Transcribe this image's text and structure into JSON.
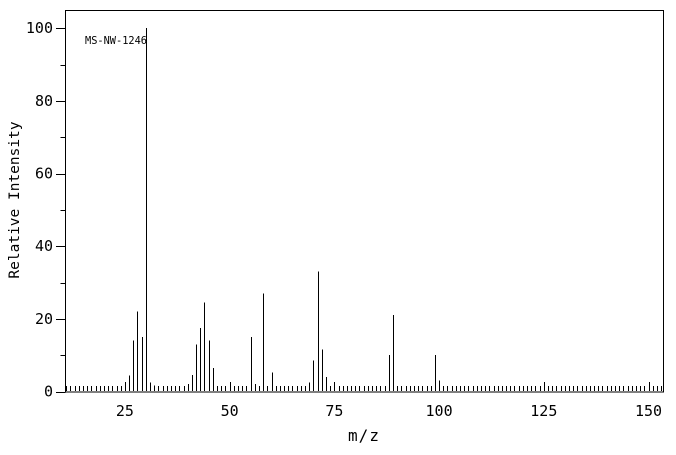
{
  "figure": {
    "background_color": "#ffffff",
    "line_color": "#000000",
    "annotation_label": "MS-NW-1246"
  },
  "chart_data": {
    "type": "bar",
    "subtype": "mass-spectrum",
    "annotation": "MS-NW-1246",
    "xlabel": "m/z",
    "ylabel": "Relative Intensity",
    "xlim": [
      10.7,
      153.45
    ],
    "ylim": [
      0,
      105
    ],
    "x_major_ticks": [
      25,
      50,
      75,
      100,
      125,
      150
    ],
    "x_minor_tick_step": 1,
    "y_major_ticks": [
      0,
      20,
      40,
      60,
      80,
      100
    ],
    "y_minor_tick_step": 10,
    "grid": false,
    "legend": false,
    "peaks_format": [
      "mz",
      "relative_intensity_percent"
    ],
    "peaks": [
      [
        26,
        4.4
      ],
      [
        27,
        14
      ],
      [
        28,
        22
      ],
      [
        29,
        15
      ],
      [
        30,
        100
      ],
      [
        31,
        2.5
      ],
      [
        32,
        1.7
      ],
      [
        38,
        1
      ],
      [
        39,
        1.5
      ],
      [
        40,
        2
      ],
      [
        41,
        4.5
      ],
      [
        42,
        13
      ],
      [
        43,
        17.5
      ],
      [
        44,
        24.5
      ],
      [
        45,
        14
      ],
      [
        46,
        6.5
      ],
      [
        51,
        1
      ],
      [
        53,
        1
      ],
      [
        54,
        1.5
      ],
      [
        55,
        15
      ],
      [
        56,
        2
      ],
      [
        58,
        27
      ],
      [
        60,
        5.2
      ],
      [
        69,
        2.5
      ],
      [
        70,
        8.5
      ],
      [
        71,
        33
      ],
      [
        72,
        11.5
      ],
      [
        73,
        4
      ],
      [
        81,
        1.5
      ],
      [
        88,
        10
      ],
      [
        89,
        21
      ],
      [
        99,
        10
      ],
      [
        100,
        3
      ]
    ]
  }
}
